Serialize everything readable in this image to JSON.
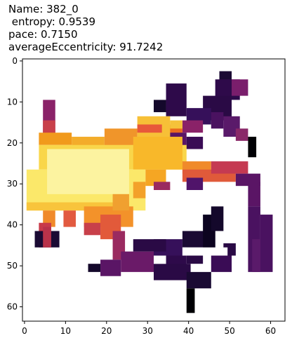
{
  "title_lines": [
    "Name: 382_0",
    " entropy: 0.9539",
    "pace: 0.7150",
    "averageEccentricity: 91.7242"
  ],
  "chart_data": {
    "type": "heatmap",
    "colormap": "inferno",
    "x_ticks": [
      "0",
      "10",
      "20",
      "30",
      "40",
      "50",
      "60"
    ],
    "y_ticks": [
      "0",
      "10",
      "20",
      "30",
      "40",
      "50",
      "60"
    ],
    "xlim": [
      -0.5,
      63.5
    ],
    "ylim": [
      63.5,
      -0.5
    ],
    "value_range": [
      0,
      1
    ],
    "regions": [
      {
        "x0": 0,
        "x1": 64,
        "y0": 0,
        "y1": 64,
        "fill": "#ffffff"
      },
      {
        "x0": 48,
        "x1": 51,
        "y0": 3,
        "y1": 7,
        "fill": "#1a0a33"
      },
      {
        "x0": 47,
        "x1": 53,
        "y0": 5,
        "y1": 10,
        "fill": "#2e0a4a"
      },
      {
        "x0": 51,
        "x1": 55,
        "y0": 5,
        "y1": 9,
        "fill": "#7a1e6c"
      },
      {
        "x0": 44,
        "x1": 51,
        "y0": 9,
        "y1": 15,
        "fill": "#2a0a45"
      },
      {
        "x0": 35,
        "x1": 40,
        "y0": 6,
        "y1": 14,
        "fill": "#2e0a4a"
      },
      {
        "x0": 32,
        "x1": 35,
        "y0": 10,
        "y1": 13,
        "fill": "#14082b"
      },
      {
        "x0": 40,
        "x1": 46,
        "y0": 12,
        "y1": 16,
        "fill": "#36105a"
      },
      {
        "x0": 46,
        "x1": 49,
        "y0": 13,
        "y1": 17,
        "fill": "#4a1260"
      },
      {
        "x0": 39,
        "x1": 44,
        "y0": 15,
        "y1": 18,
        "fill": "#8a2268"
      },
      {
        "x0": 35,
        "x1": 39,
        "y0": 16,
        "y1": 19,
        "fill": "#ea6a1e"
      },
      {
        "x0": 34,
        "x1": 40,
        "y0": 18,
        "y1": 22,
        "fill": "#5a1565"
      },
      {
        "x0": 40,
        "x1": 44,
        "y0": 19,
        "y1": 22,
        "fill": "#3a0c55"
      },
      {
        "x0": 49,
        "x1": 53,
        "y0": 14,
        "y1": 19,
        "fill": "#5a1a6a"
      },
      {
        "x0": 52,
        "x1": 55,
        "y0": 17,
        "y1": 20,
        "fill": "#8a2868"
      },
      {
        "x0": 55,
        "x1": 57,
        "y0": 19,
        "y1": 24,
        "fill": "#000004"
      },
      {
        "x0": 5,
        "x1": 8,
        "y0": 10,
        "y1": 19,
        "fill": "#8a2268"
      },
      {
        "x0": 5,
        "x1": 8,
        "y0": 15,
        "y1": 19,
        "fill": "#c8404a"
      },
      {
        "x0": 4,
        "x1": 12,
        "y0": 18,
        "y1": 21,
        "fill": "#f19a1c"
      },
      {
        "x0": 12,
        "x1": 20,
        "y0": 19,
        "y1": 22,
        "fill": "#f3ac2a"
      },
      {
        "x0": 20,
        "x1": 28,
        "y0": 17,
        "y1": 22,
        "fill": "#f0952a"
      },
      {
        "x0": 28,
        "x1": 36,
        "y0": 14,
        "y1": 20,
        "fill": "#f7c037"
      },
      {
        "x0": 28,
        "x1": 34,
        "y0": 16,
        "y1": 18,
        "fill": "#e8583a"
      },
      {
        "x0": 36,
        "x1": 39,
        "y0": 15,
        "y1": 17,
        "fill": "#f5c23a"
      },
      {
        "x0": 4,
        "x1": 40,
        "y0": 21,
        "y1": 27,
        "fill": "#f9d64a"
      },
      {
        "x0": 27,
        "x1": 39,
        "y0": 19,
        "y1": 27,
        "fill": "#f8b82a"
      },
      {
        "x0": 1,
        "x1": 30,
        "y0": 27,
        "y1": 37,
        "fill": "#fbe86a"
      },
      {
        "x0": 6,
        "x1": 26,
        "y0": 22,
        "y1": 33,
        "fill": "#fcf3a0"
      },
      {
        "x0": 30,
        "x1": 35,
        "y0": 27,
        "y1": 31,
        "fill": "#f5a623"
      },
      {
        "x0": 27,
        "x1": 30,
        "y0": 30,
        "y1": 34,
        "fill": "#f3a12a"
      },
      {
        "x0": 39,
        "x1": 46,
        "y0": 25,
        "y1": 28,
        "fill": "#f08a2a"
      },
      {
        "x0": 39,
        "x1": 52,
        "y0": 27,
        "y1": 30,
        "fill": "#e05a3a"
      },
      {
        "x0": 46,
        "x1": 55,
        "y0": 25,
        "y1": 28,
        "fill": "#c53a52"
      },
      {
        "x0": 52,
        "x1": 58,
        "y0": 28,
        "y1": 31,
        "fill": "#5a1565"
      },
      {
        "x0": 40,
        "x1": 44,
        "y0": 29,
        "y1": 32,
        "fill": "#50146a"
      },
      {
        "x0": 32,
        "x1": 36,
        "y0": 30,
        "y1": 32,
        "fill": "#9a2a60"
      },
      {
        "x0": 1,
        "x1": 26,
        "y0": 35,
        "y1": 37,
        "fill": "#f8c43c"
      },
      {
        "x0": 15,
        "x1": 27,
        "y0": 36,
        "y1": 41,
        "fill": "#f3922a"
      },
      {
        "x0": 22,
        "x1": 26,
        "y0": 33,
        "y1": 37,
        "fill": "#f0a030"
      },
      {
        "x0": 5,
        "x1": 8,
        "y0": 37,
        "y1": 41,
        "fill": "#f08a2a"
      },
      {
        "x0": 10,
        "x1": 13,
        "y0": 37,
        "y1": 41,
        "fill": "#e25a40"
      },
      {
        "x0": 4,
        "x1": 7,
        "y0": 40,
        "y1": 46,
        "fill": "#c83a4a"
      },
      {
        "x0": 3,
        "x1": 9,
        "y0": 42,
        "y1": 46,
        "fill": "#1a0a33"
      },
      {
        "x0": 5,
        "x1": 7,
        "y0": 41,
        "y1": 46,
        "fill": "#b8324a"
      },
      {
        "x0": 15,
        "x1": 19,
        "y0": 40,
        "y1": 43,
        "fill": "#c8404a"
      },
      {
        "x0": 19,
        "x1": 24,
        "y0": 38,
        "y1": 44,
        "fill": "#e25a3a"
      },
      {
        "x0": 22,
        "x1": 25,
        "y0": 42,
        "y1": 49,
        "fill": "#9a2a60"
      },
      {
        "x0": 16,
        "x1": 19,
        "y0": 50,
        "y1": 52,
        "fill": "#14082b"
      },
      {
        "x0": 19,
        "x1": 24,
        "y0": 49,
        "y1": 53,
        "fill": "#5a1565"
      },
      {
        "x0": 24,
        "x1": 32,
        "y0": 47,
        "y1": 52,
        "fill": "#6a1a68"
      },
      {
        "x0": 32,
        "x1": 39,
        "y0": 44,
        "y1": 48,
        "fill": "#36105a"
      },
      {
        "x0": 27,
        "x1": 35,
        "y0": 44,
        "y1": 47,
        "fill": "#2a0a45"
      },
      {
        "x0": 39,
        "x1": 47,
        "y0": 42,
        "y1": 46,
        "fill": "#1a0a33"
      },
      {
        "x0": 44,
        "x1": 47,
        "y0": 38,
        "y1": 48,
        "fill": "#0c0420"
      },
      {
        "x0": 46,
        "x1": 49,
        "y0": 36,
        "y1": 42,
        "fill": "#14082b"
      },
      {
        "x0": 40,
        "x1": 44,
        "y0": 46,
        "y1": 50,
        "fill": "#2a0a45"
      },
      {
        "x0": 35,
        "x1": 40,
        "y0": 48,
        "y1": 52,
        "fill": "#2e0a4a"
      },
      {
        "x0": 32,
        "x1": 41,
        "y0": 50,
        "y1": 54,
        "fill": "#2a0a45"
      },
      {
        "x0": 40,
        "x1": 46,
        "y0": 52,
        "y1": 56,
        "fill": "#1a0a33"
      },
      {
        "x0": 40,
        "x1": 42,
        "y0": 56,
        "y1": 62,
        "fill": "#000004"
      },
      {
        "x0": 46,
        "x1": 51,
        "y0": 48,
        "y1": 52,
        "fill": "#3a0c55"
      },
      {
        "x0": 49,
        "x1": 52,
        "y0": 45,
        "y1": 48,
        "fill": "#2a0a45"
      },
      {
        "x0": 55,
        "x1": 58,
        "y0": 30,
        "y1": 36,
        "fill": "#5a1565"
      },
      {
        "x0": 55,
        "x1": 58,
        "y0": 36,
        "y1": 52,
        "fill": "#4a1260"
      },
      {
        "x0": 58,
        "x1": 61,
        "y0": 38,
        "y1": 52,
        "fill": "#4a1260"
      },
      {
        "x0": 56,
        "x1": 58,
        "y0": 44,
        "y1": 52,
        "fill": "#5a1a6a"
      },
      {
        "x0": 39,
        "x1": 50,
        "y0": 46,
        "y1": 48,
        "fill": "#ffffff"
      },
      {
        "x0": 32,
        "x1": 35,
        "y0": 48,
        "y1": 50,
        "fill": "#ffffff"
      }
    ]
  }
}
